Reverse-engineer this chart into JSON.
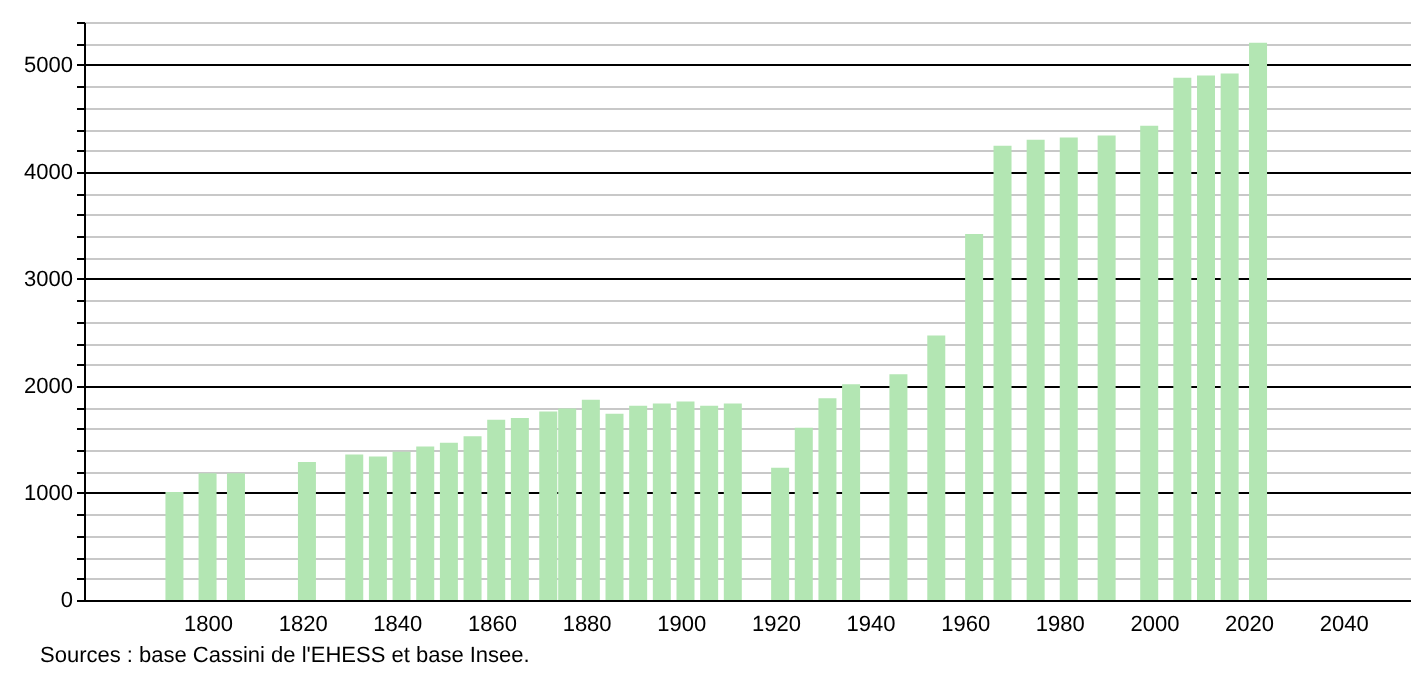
{
  "chart_data": {
    "type": "bar",
    "x": [
      1793,
      1800,
      1806,
      1821,
      1831,
      1836,
      1841,
      1846,
      1851,
      1856,
      1861,
      1866,
      1872,
      1876,
      1881,
      1886,
      1891,
      1896,
      1901,
      1906,
      1911,
      1921,
      1926,
      1931,
      1936,
      1946,
      1954,
      1962,
      1968,
      1975,
      1982,
      1990,
      1999,
      2006,
      2011,
      2016,
      2022
    ],
    "values": [
      1010,
      1185,
      1185,
      1290,
      1360,
      1340,
      1385,
      1435,
      1470,
      1530,
      1685,
      1700,
      1760,
      1790,
      1870,
      1740,
      1815,
      1835,
      1855,
      1815,
      1835,
      1235,
      1610,
      1885,
      2015,
      2110,
      2470,
      3420,
      4245,
      4300,
      4320,
      4340,
      4430,
      4880,
      4900,
      4920,
      5205
    ],
    "color": "#b3e6b3",
    "xlim": [
      1776,
      2052
    ],
    "xticks": [
      1800,
      1820,
      1840,
      1860,
      1880,
      1900,
      1920,
      1940,
      1960,
      1980,
      2000,
      2020,
      2040
    ],
    "ylim": [
      0,
      5400
    ],
    "yticks": [
      0,
      {
        "value": 200,
        "label": null
      },
      {
        "value": 400,
        "label": null
      },
      {
        "value": 600,
        "label": null
      },
      {
        "value": 800,
        "label": null
      },
      1000,
      {
        "value": 1200,
        "label": null
      },
      {
        "value": 1400,
        "label": null
      },
      {
        "value": 1600,
        "label": null
      },
      {
        "value": 1800,
        "label": null
      },
      2000,
      {
        "value": 2200,
        "label": null
      },
      {
        "value": 2400,
        "label": null
      },
      {
        "value": 2600,
        "label": null
      },
      {
        "value": 2800,
        "label": null
      },
      3000,
      {
        "value": 3200,
        "label": null
      },
      {
        "value": 3400,
        "label": null
      },
      {
        "value": 3600,
        "label": null
      },
      {
        "value": 3800,
        "label": null
      },
      4000,
      {
        "value": 4200,
        "label": null
      },
      {
        "value": 4400,
        "label": null
      },
      {
        "value": 4600,
        "label": null
      },
      {
        "value": 4800,
        "label": null
      },
      5000,
      {
        "value": 5200,
        "label": null
      },
      {
        "value": 5400,
        "label": null
      }
    ],
    "grid": "y",
    "annotations": [
      "Sources : base Cassini de l'EHESS et base Insee."
    ]
  }
}
